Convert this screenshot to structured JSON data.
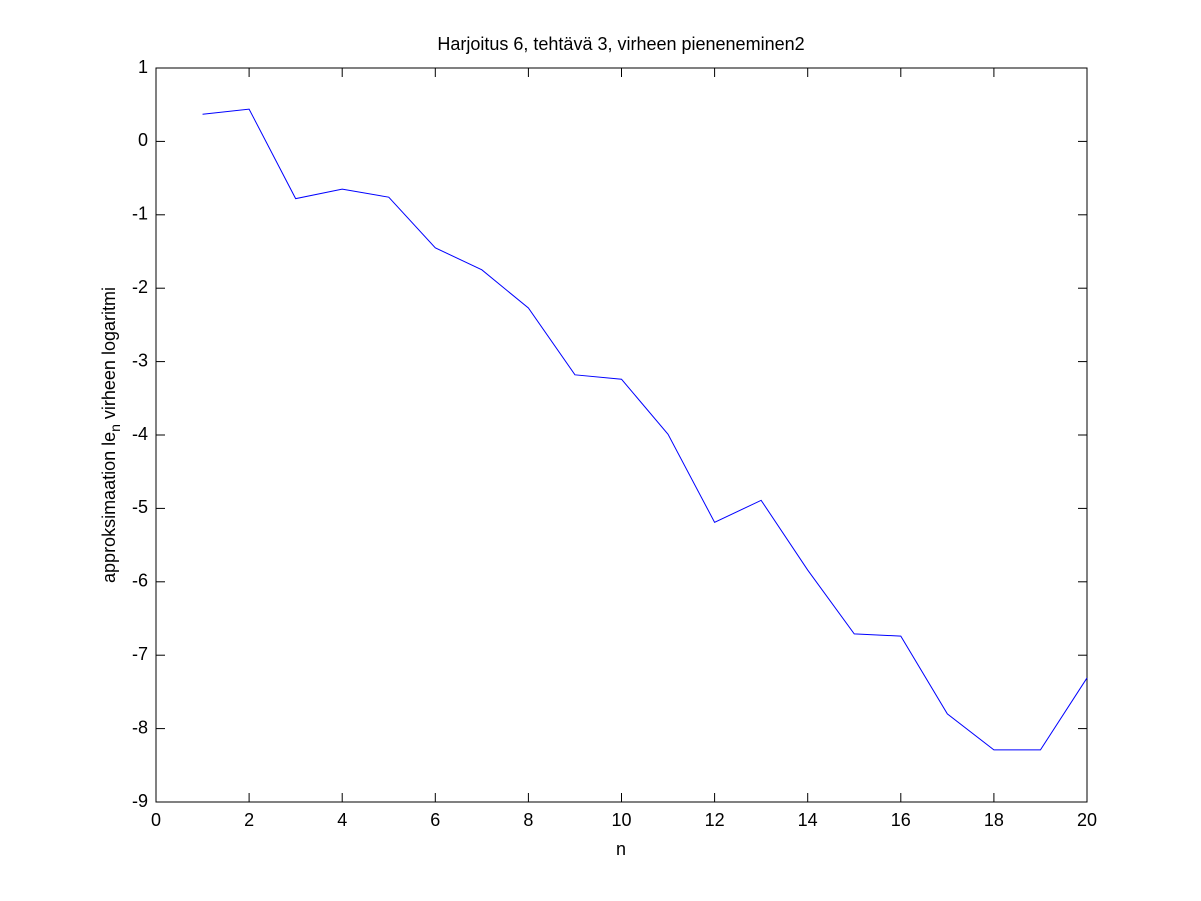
{
  "chart_data": {
    "type": "line",
    "title": "Harjoitus 6, tehtävä 3, virheen pieneneminen2",
    "xlabel": "n",
    "ylabel": [
      "approksimaation le",
      "n",
      " virheen logaritmi"
    ],
    "x": [
      1,
      2,
      3,
      4,
      5,
      6,
      7,
      8,
      9,
      10,
      11,
      12,
      13,
      14,
      15,
      16,
      17,
      18,
      19,
      20
    ],
    "series": [
      {
        "color": "#0000ff",
        "values": [
          0.37,
          0.44,
          -0.78,
          -0.65,
          -0.76,
          -1.45,
          -1.75,
          -2.27,
          -3.18,
          -3.24,
          -3.99,
          -5.19,
          -4.89,
          -5.84,
          -6.71,
          -6.74,
          -7.8,
          -8.29,
          -8.29,
          -7.31
        ]
      }
    ],
    "xlim": [
      0,
      20
    ],
    "xticks": [
      0,
      2,
      4,
      6,
      8,
      10,
      12,
      14,
      16,
      18,
      20
    ],
    "ylim": [
      -9,
      1
    ],
    "yticks": [
      -9,
      -8,
      -7,
      -6,
      -5,
      -4,
      -3,
      -2,
      -1,
      0,
      1
    ]
  }
}
